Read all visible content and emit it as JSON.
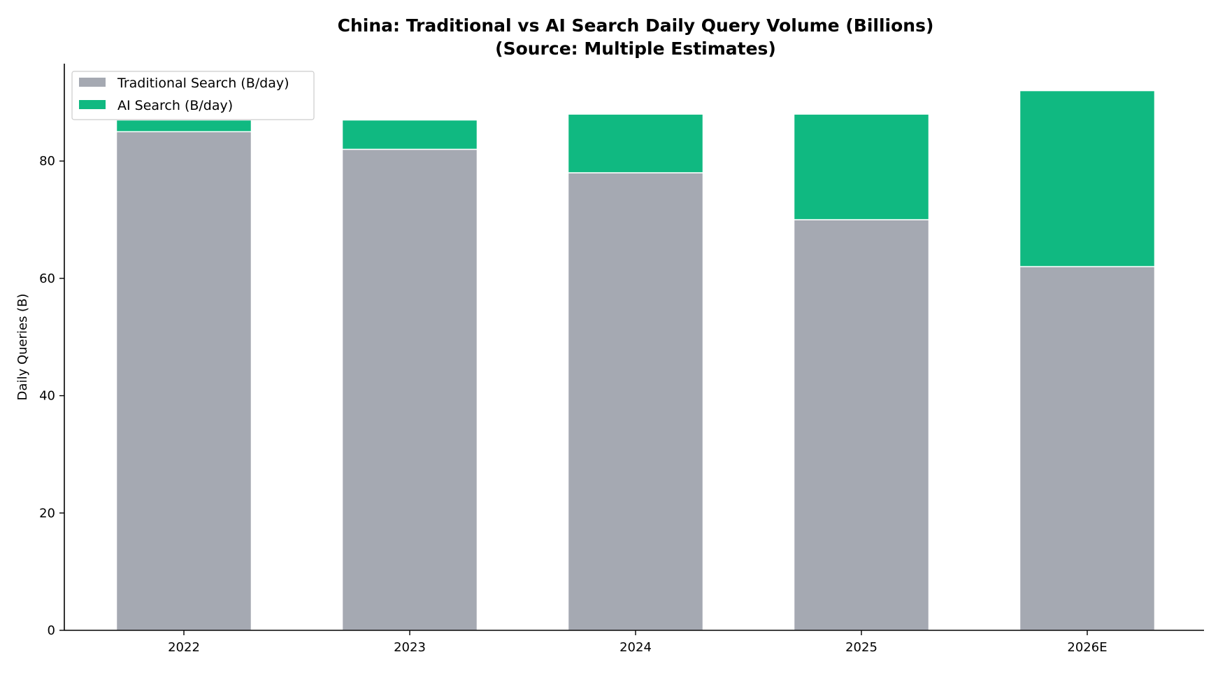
{
  "chart_data": {
    "type": "bar",
    "stacked": true,
    "title": [
      "China: Traditional vs AI Search Daily Query Volume (Billions)",
      "(Source: Multiple Estimates)"
    ],
    "xlabel": "",
    "ylabel": "Daily Queries (B)",
    "categories": [
      "2022",
      "2023",
      "2024",
      "2025",
      "2026E"
    ],
    "series": [
      {
        "name": "Traditional Search (B/day)",
        "values": [
          85,
          82,
          78,
          70,
          62
        ],
        "color": "#a5a9b2"
      },
      {
        "name": "AI Search (B/day)",
        "values": [
          2,
          5,
          10,
          18,
          30
        ],
        "color": "#10b981"
      }
    ],
    "ylim": [
      0,
      96.6
    ],
    "yticks": [
      0,
      20,
      40,
      60,
      80
    ],
    "grid": false,
    "legend": "top-left"
  }
}
